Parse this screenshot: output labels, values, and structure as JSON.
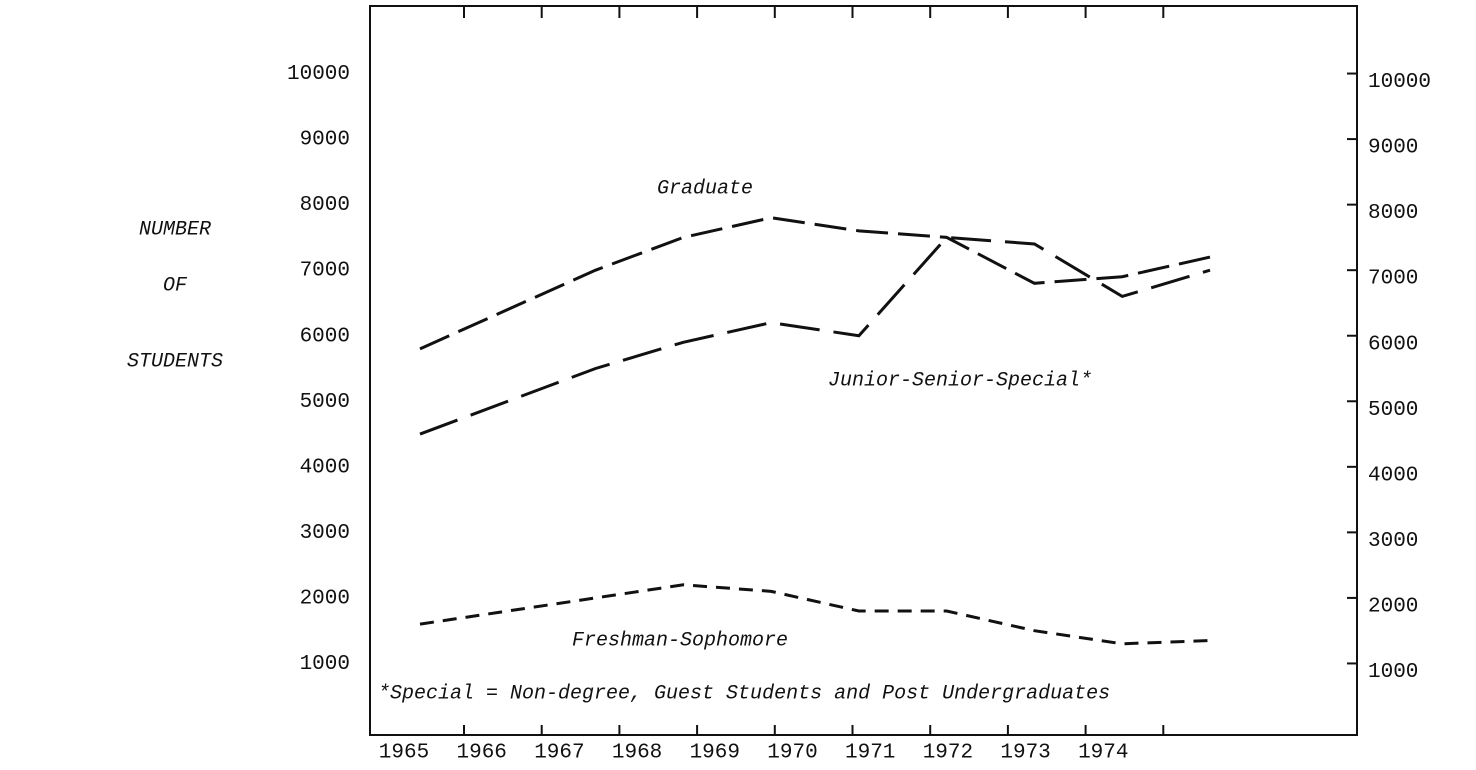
{
  "chart_data": {
    "type": "line",
    "y_label_lines": [
      "NUMBER",
      "OF",
      "STUDENTS"
    ],
    "categories": [
      "1965",
      "1966",
      "1967",
      "1968",
      "1969",
      "1970",
      "1971",
      "1972",
      "1973",
      "1974"
    ],
    "series": [
      {
        "name": "Graduate",
        "color": "#111111",
        "values": [
          5800,
          6400,
          7000,
          7500,
          7800,
          7600,
          7500,
          6800,
          6900,
          7200
        ]
      },
      {
        "name": "Junior-Senior-Special*",
        "color": "#111111",
        "values": [
          4500,
          5000,
          5500,
          5900,
          6200,
          6000,
          7500,
          7400,
          6600,
          7000
        ]
      },
      {
        "name": "Freshman-Sophomore",
        "color": "#111111",
        "values": [
          1600,
          1800,
          2000,
          2200,
          2100,
          1800,
          1800,
          1500,
          1300,
          1350
        ]
      }
    ],
    "footnote": "*Special = Non-degree, Guest Students and Post Undergraduates",
    "ylim": [
      0,
      11000
    ],
    "yticks": [
      1000,
      2000,
      3000,
      4000,
      5000,
      6000,
      7000,
      8000,
      9000,
      10000
    ],
    "y2lim": [
      0,
      11000
    ],
    "y2ticks": [
      1000,
      2000,
      3000,
      4000,
      5000,
      6000,
      7000,
      8000,
      9000,
      10000
    ]
  }
}
